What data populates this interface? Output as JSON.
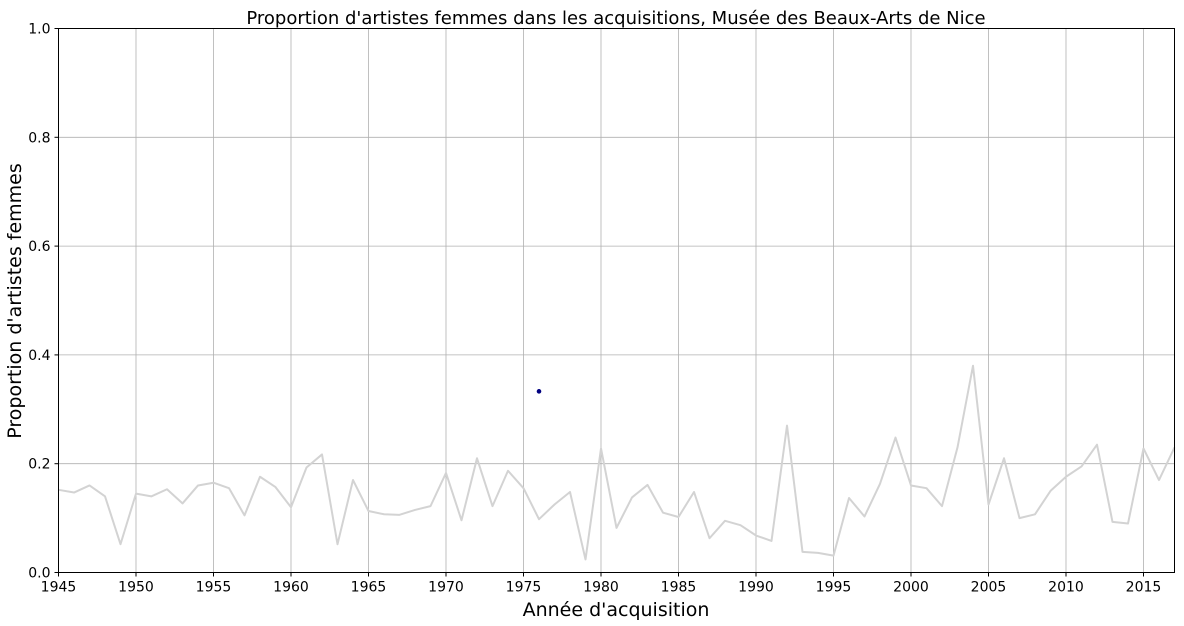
{
  "chart_data": {
    "type": "line",
    "title": "Proportion d'artistes femmes dans les acquisitions, Musée des Beaux-Arts de Nice",
    "xlabel": "Année d'acquisition",
    "ylabel": "Proportion d'artistes femmes",
    "xlim": [
      1945,
      2017
    ],
    "ylim": [
      0,
      1.0
    ],
    "grid": true,
    "x_ticks": [
      "1945",
      "1950",
      "1955",
      "1960",
      "1965",
      "1970",
      "1975",
      "1980",
      "1985",
      "1990",
      "1995",
      "2000",
      "2005",
      "2010",
      "2015"
    ],
    "y_ticks": [
      "0.0",
      "0.2",
      "0.4",
      "0.6",
      "0.8",
      "1.0"
    ],
    "series": [
      {
        "type": "line",
        "color": "#d3d3d3",
        "x": [
          1945,
          1946,
          1947,
          1948,
          1949,
          1950,
          1951,
          1952,
          1953,
          1954,
          1955,
          1956,
          1957,
          1958,
          1959,
          1960,
          1961,
          1962,
          1963,
          1964,
          1965,
          1966,
          1967,
          1968,
          1969,
          1970,
          1971,
          1972,
          1973,
          1974,
          1975,
          1976,
          1977,
          1978,
          1979,
          1980,
          1981,
          1982,
          1983,
          1984,
          1985,
          1986,
          1987,
          1988,
          1989,
          1990,
          1991,
          1992,
          1993,
          1994,
          1995,
          1996,
          1997,
          1998,
          1999,
          2000,
          2001,
          2002,
          2003,
          2004,
          2005,
          2006,
          2007,
          2008,
          2009,
          2010,
          2011,
          2012,
          2013,
          2014,
          2015,
          2016,
          2017
        ],
        "y": [
          0.152,
          0.147,
          0.16,
          0.14,
          0.052,
          0.145,
          0.14,
          0.153,
          0.127,
          0.16,
          0.165,
          0.155,
          0.105,
          0.176,
          0.157,
          0.12,
          0.193,
          0.217,
          0.052,
          0.17,
          0.113,
          0.107,
          0.106,
          0.115,
          0.122,
          0.183,
          0.096,
          0.21,
          0.122,
          0.187,
          0.155,
          0.098,
          0.125,
          0.148,
          0.024,
          0.228,
          0.082,
          0.138,
          0.161,
          0.11,
          0.102,
          0.148,
          0.063,
          0.095,
          0.087,
          0.068,
          0.058,
          0.27,
          0.038,
          0.036,
          0.031,
          0.137,
          0.103,
          0.163,
          0.248,
          0.16,
          0.155,
          0.122,
          0.23,
          0.38,
          0.125,
          0.21,
          0.1,
          0.107,
          0.15,
          0.176,
          0.195,
          0.235,
          0.093,
          0.09,
          0.228,
          0.17,
          0.23
        ]
      },
      {
        "type": "scatter",
        "color": "#000080",
        "x": [
          1976
        ],
        "y": [
          0.333
        ]
      }
    ]
  }
}
